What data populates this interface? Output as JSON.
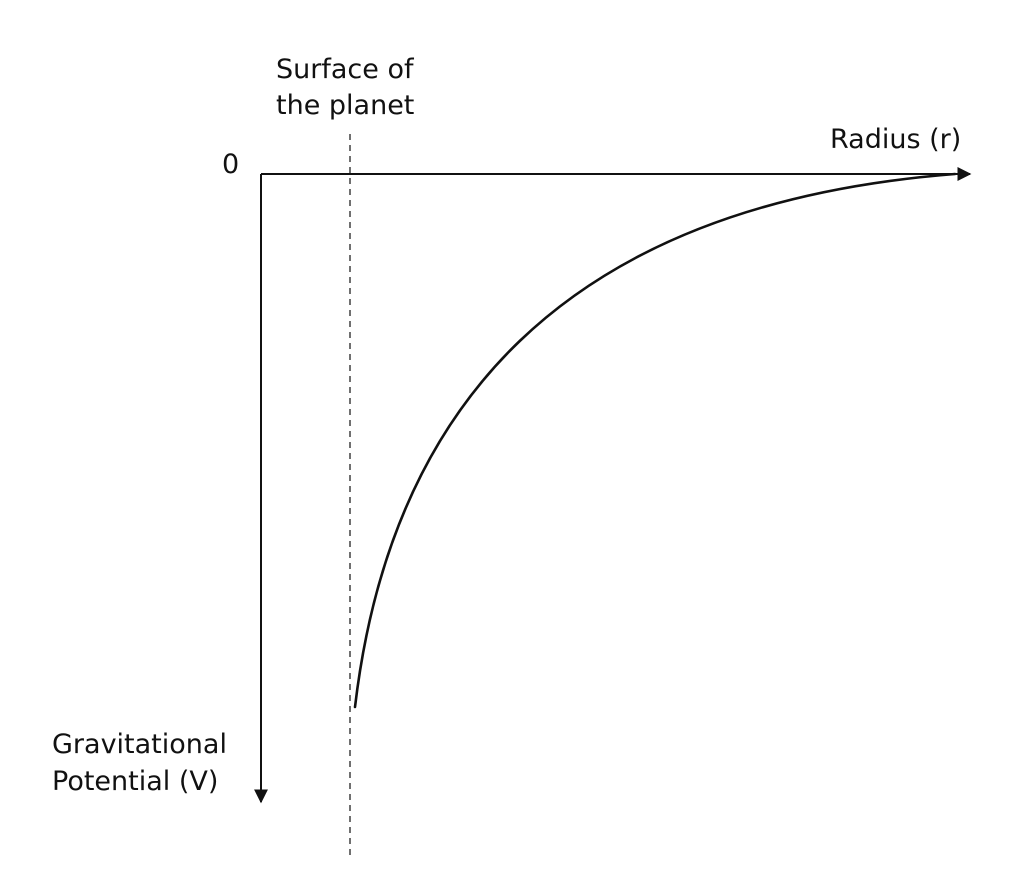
{
  "diagram": {
    "origin_label": "0",
    "x_axis_label": "Radius (r)",
    "y_axis_label": {
      "line1": "Gravitational",
      "line2": "Potential (V)"
    },
    "surface_label": {
      "line1": "Surface of",
      "line2": "the planet"
    },
    "curve_description": "V ∝ -1/r, starting at the planet surface and approaching 0 as r increases",
    "colors": {
      "ink": "#111111",
      "background": "#ffffff"
    }
  }
}
